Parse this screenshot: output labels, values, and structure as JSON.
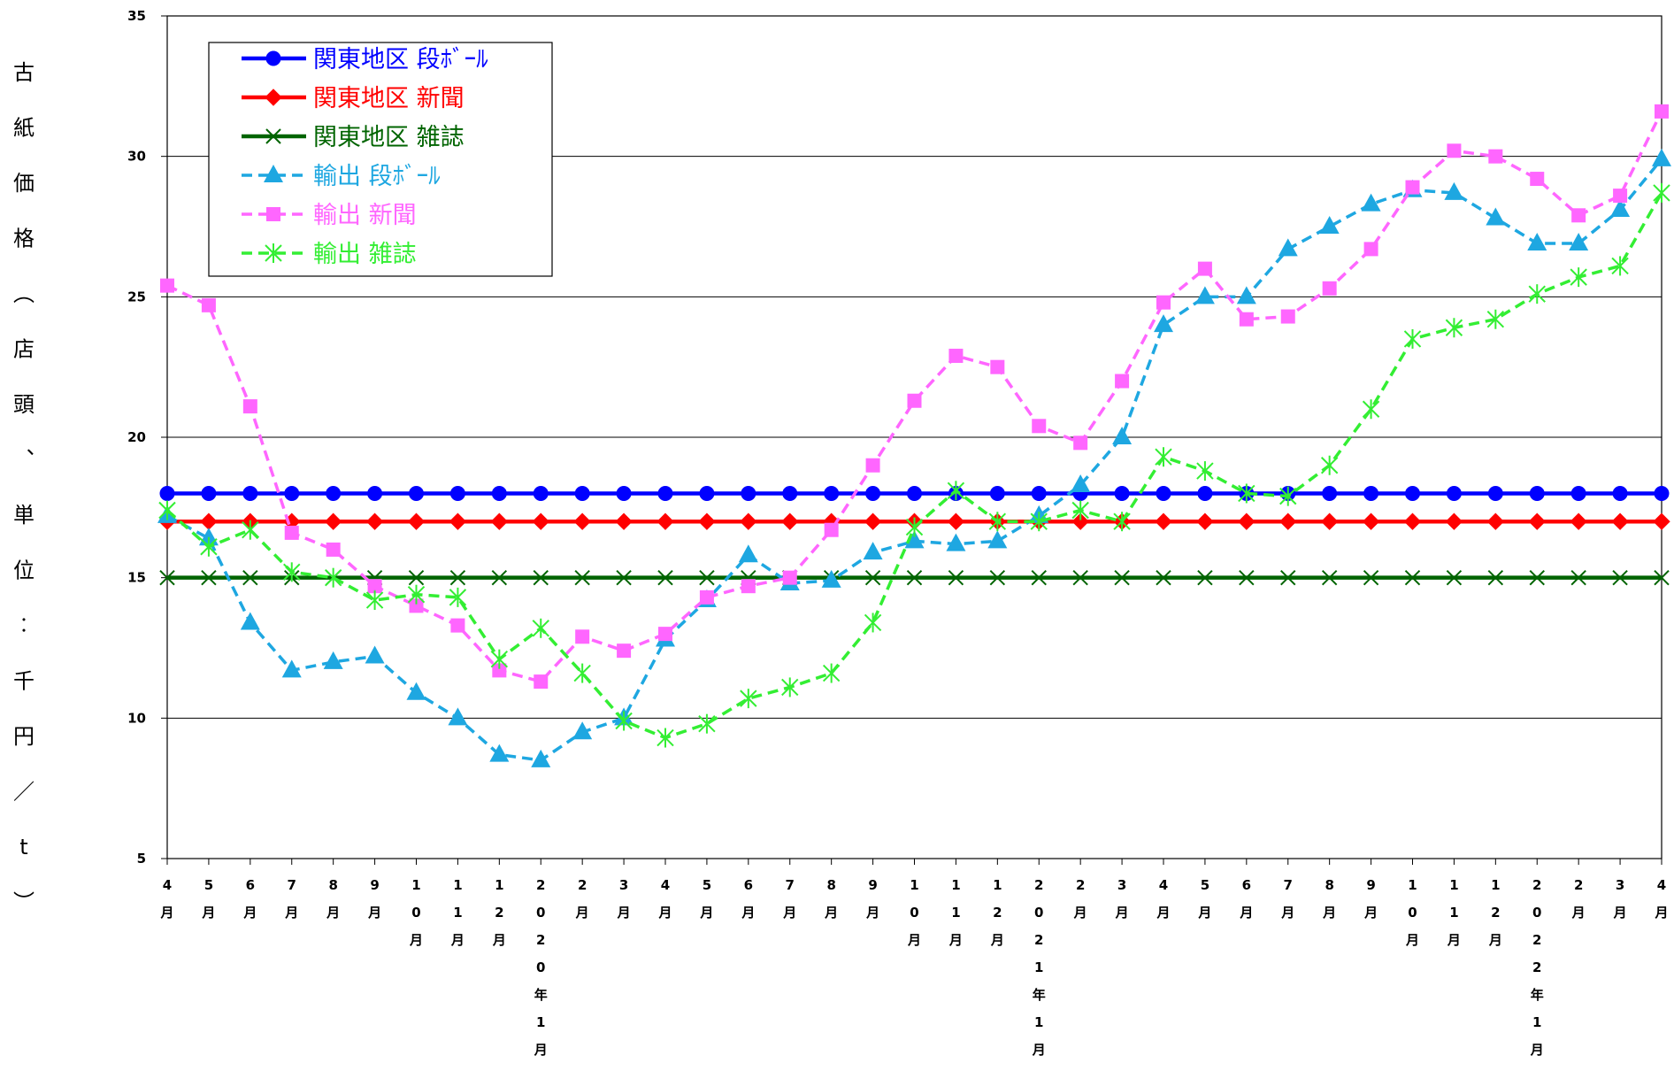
{
  "chart_data": {
    "type": "line",
    "ylabel": "古紙価格（店頭、単位：千円／t）",
    "ylim": [
      5,
      35
    ],
    "yticks": [
      "5",
      "10",
      "15",
      "20",
      "25",
      "30",
      "35"
    ],
    "grid": true,
    "legend_position": "top-left",
    "categories": [
      "4月",
      "5月",
      "6月",
      "7月",
      "8月",
      "9月",
      "10月",
      "11月",
      "12月",
      "2020年1月",
      "2月",
      "3月",
      "4月",
      "5月",
      "6月",
      "7月",
      "8月",
      "9月",
      "10月",
      "11月",
      "12月",
      "2021年1月",
      "2月",
      "3月",
      "4月",
      "5月",
      "6月",
      "7月",
      "8月",
      "9月",
      "10月",
      "11月",
      "12月",
      "2022年1月",
      "2月",
      "3月",
      "4月"
    ],
    "series": [
      {
        "name": "関東地区 段ﾎﾞｰﾙ",
        "color": "#0000ff",
        "dash": false,
        "marker": "circle",
        "values": [
          18,
          18,
          18,
          18,
          18,
          18,
          18,
          18,
          18,
          18,
          18,
          18,
          18,
          18,
          18,
          18,
          18,
          18,
          18,
          18,
          18,
          18,
          18,
          18,
          18,
          18,
          18,
          18,
          18,
          18,
          18,
          18,
          18,
          18,
          18,
          18,
          18
        ]
      },
      {
        "name": "関東地区 新聞",
        "color": "#ff0000",
        "dash": false,
        "marker": "diamond",
        "values": [
          17,
          17,
          17,
          17,
          17,
          17,
          17,
          17,
          17,
          17,
          17,
          17,
          17,
          17,
          17,
          17,
          17,
          17,
          17,
          17,
          17,
          17,
          17,
          17,
          17,
          17,
          17,
          17,
          17,
          17,
          17,
          17,
          17,
          17,
          17,
          17,
          17
        ]
      },
      {
        "name": "関東地区 雑誌",
        "color": "#006400",
        "dash": false,
        "marker": "x",
        "values": [
          15,
          15,
          15,
          15,
          15,
          15,
          15,
          15,
          15,
          15,
          15,
          15,
          15,
          15,
          15,
          15,
          15,
          15,
          15,
          15,
          15,
          15,
          15,
          15,
          15,
          15,
          15,
          15,
          15,
          15,
          15,
          15,
          15,
          15,
          15,
          15,
          15
        ]
      },
      {
        "name": "輸出 段ﾎﾞｰﾙ",
        "color": "#1ea7e1",
        "dash": true,
        "marker": "triangle",
        "values": [
          17.2,
          16.4,
          13.4,
          11.7,
          12.0,
          12.2,
          10.9,
          10.0,
          8.7,
          8.5,
          9.5,
          10.0,
          12.8,
          14.2,
          15.8,
          14.8,
          14.9,
          15.9,
          16.3,
          16.2,
          16.3,
          17.2,
          18.3,
          20.0,
          24.0,
          25.0,
          25.0,
          26.7,
          27.5,
          28.3,
          28.8,
          28.7,
          27.8,
          26.9,
          26.9,
          28.1,
          29.9
        ]
      },
      {
        "name": "輸出 新聞",
        "color": "#ff66ff",
        "dash": true,
        "marker": "square",
        "values": [
          25.4,
          24.7,
          21.1,
          16.6,
          16.0,
          14.7,
          14.0,
          13.3,
          11.7,
          11.3,
          12.9,
          12.4,
          13.0,
          14.3,
          14.7,
          15.0,
          16.7,
          19.0,
          21.3,
          22.9,
          22.5,
          20.4,
          19.8,
          22.0,
          24.8,
          26.0,
          24.2,
          24.3,
          25.3,
          26.7,
          28.9,
          30.2,
          30.0,
          29.2,
          27.9,
          28.6,
          31.6
        ]
      },
      {
        "name": "輸出 雑誌",
        "color": "#33ee33",
        "dash": true,
        "marker": "star",
        "values": [
          17.4,
          16.1,
          16.7,
          15.2,
          15.0,
          14.2,
          14.4,
          14.3,
          12.1,
          13.2,
          11.6,
          9.9,
          9.3,
          9.8,
          10.7,
          11.1,
          11.6,
          13.4,
          16.8,
          18.1,
          17.0,
          17.0,
          17.4,
          17.0,
          19.3,
          18.8,
          18.0,
          17.9,
          19.0,
          21.0,
          23.5,
          23.9,
          24.2,
          25.1,
          25.7,
          26.1,
          28.7
        ]
      }
    ]
  }
}
